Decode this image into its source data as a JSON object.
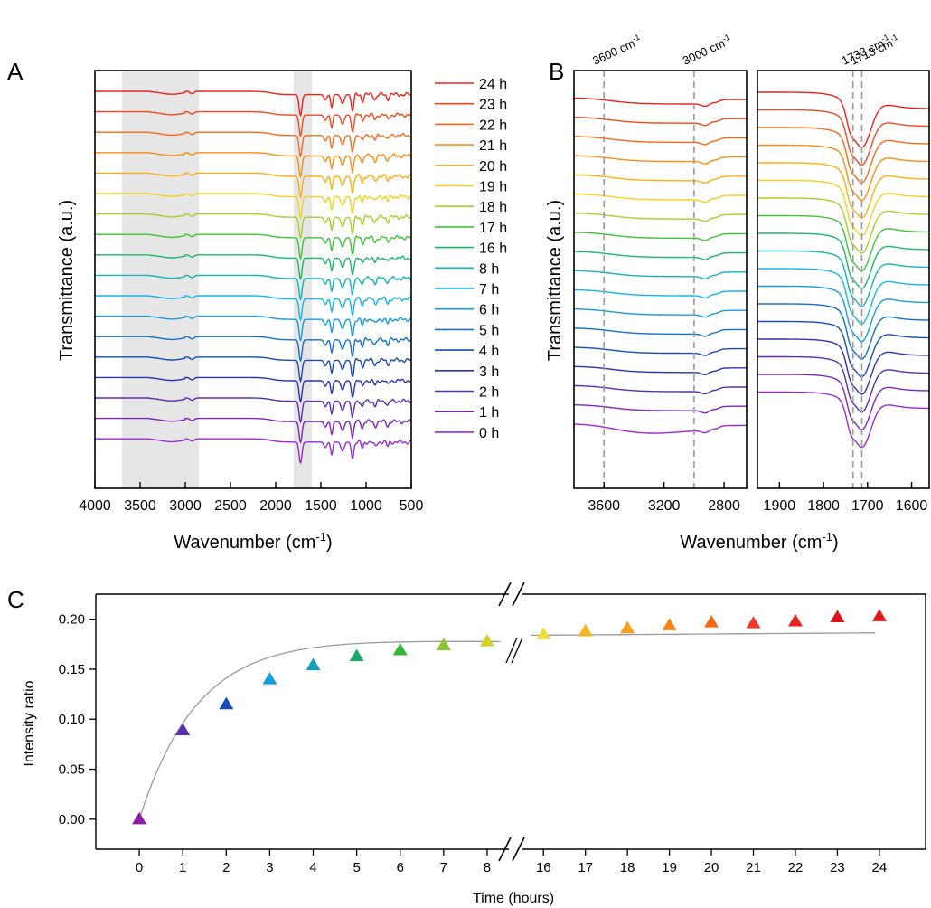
{
  "panel_letters": {
    "a": "A",
    "b": "B",
    "c": "C"
  },
  "chart_data": [
    {
      "type": "line",
      "panel": "A",
      "xlabel_prefix": "Wavenumber (cm",
      "xlabel_sup": "-1",
      "xlabel_suffix": ")",
      "ylabel": "Transmittance (a.u.)",
      "xlim": [
        4000,
        500
      ],
      "x_ticks": [
        4000,
        3500,
        3000,
        2500,
        2000,
        1500,
        1000,
        500
      ],
      "shaded_regions": [
        [
          3700,
          2850
        ],
        [
          1800,
          1600
        ]
      ],
      "legend_position": "right",
      "series": [
        {
          "name": "24 h",
          "color": "#e8231d"
        },
        {
          "name": "23 h",
          "color": "#ee4a1b"
        },
        {
          "name": "22 h",
          "color": "#f46a18"
        },
        {
          "name": "21 h",
          "color": "#f88c14"
        },
        {
          "name": "20 h",
          "color": "#fcae12"
        },
        {
          "name": "19 h",
          "color": "#f2d21c"
        },
        {
          "name": "18 h",
          "color": "#a6cf2a"
        },
        {
          "name": "17 h",
          "color": "#40c236"
        },
        {
          "name": "16 h",
          "color": "#18b86a"
        },
        {
          "name": "8 h",
          "color": "#12b4b4"
        },
        {
          "name": "7 h",
          "color": "#16b4e6"
        },
        {
          "name": "6 h",
          "color": "#149cdc"
        },
        {
          "name": "5 h",
          "color": "#1470c8"
        },
        {
          "name": "4 h",
          "color": "#1a4ab8"
        },
        {
          "name": "3 h",
          "color": "#2c32b0"
        },
        {
          "name": "2 h",
          "color": "#5a2cb4"
        },
        {
          "name": "1 h",
          "color": "#7e26c2"
        },
        {
          "name": "0 h",
          "color": "#9b2ad6"
        }
      ]
    },
    {
      "type": "line",
      "panel": "B",
      "xlabel_prefix": "Wavenumber (cm",
      "xlabel_sup": "-1",
      "xlabel_suffix": ")",
      "ylabel": "Transmittance (a.u.)",
      "sub_panels": [
        {
          "xlim": [
            3800,
            2650
          ],
          "x_ticks": [
            3600,
            3200,
            2800
          ],
          "ref_lines": [
            {
              "x": 3600,
              "label": "3600 cm",
              "sup": "-1"
            },
            {
              "x": 3000,
              "label": "3000 cm",
              "sup": "-1"
            }
          ]
        },
        {
          "xlim": [
            1950,
            1560
          ],
          "x_ticks": [
            1900,
            1800,
            1700,
            1600
          ],
          "ref_lines": [
            {
              "x": 1733,
              "label": "1733 cm",
              "sup": "-1"
            },
            {
              "x": 1713,
              "label": "1713 cm",
              "sup": "-1"
            }
          ]
        }
      ]
    },
    {
      "type": "scatter",
      "panel": "C",
      "xlabel": "Time (hours)",
      "ylabel": "Intensity ratio",
      "ylim": [
        -0.03,
        0.225
      ],
      "y_ticks": [
        "0.00",
        "0.05",
        "0.10",
        "0.15",
        "0.20"
      ],
      "x_break": [
        8,
        16
      ],
      "x": [
        0,
        1,
        2,
        3,
        4,
        5,
        6,
        7,
        8,
        16,
        17,
        18,
        19,
        20,
        21,
        22,
        23,
        24
      ],
      "y": [
        0.0,
        0.089,
        0.115,
        0.14,
        0.154,
        0.163,
        0.169,
        0.174,
        0.178,
        0.185,
        0.188,
        0.191,
        0.194,
        0.197,
        0.196,
        0.198,
        0.202,
        0.203
      ],
      "colors": [
        "#8e1aa8",
        "#5a2cb4",
        "#1a4ab8",
        "#149cdc",
        "#12a0c0",
        "#18a86a",
        "#30b838",
        "#8cc430",
        "#d2d02a",
        "#ecdc3a",
        "#f4b424",
        "#f4a020",
        "#f48418",
        "#f46a18",
        "#ee3c28",
        "#e8231d",
        "#d8141c",
        "#e01818"
      ],
      "fit_color": "#9a9a9a"
    }
  ]
}
